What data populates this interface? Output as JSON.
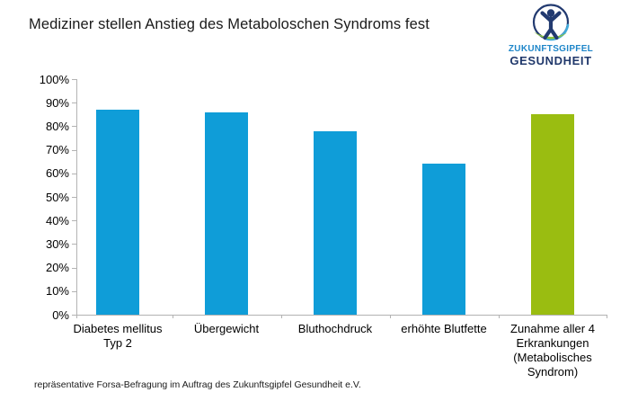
{
  "header": {
    "title": "Mediziner stellen Anstieg des Metaboloschen Syndroms fest"
  },
  "logo": {
    "line1": "ZUKUNFTSGIPFEL",
    "line2": "GESUNDHEIT",
    "emblem": "person-in-circle-icon",
    "colors": {
      "navy": "#223a70",
      "word_blue": "#1e86c9",
      "teal_arc": "#41a9d9",
      "green_swoosh": "#8dc63f"
    }
  },
  "chart_data": {
    "type": "bar",
    "title": "Mediziner stellen Anstieg des Metaboloschen Syndroms fest",
    "categories": [
      "Diabetes mellitus Typ 2",
      "Übergewicht",
      "Bluthochdruck",
      "erhöhte Blutfette",
      "Zunahme aller 4 Erkrankungen (Metabolisches Syndrom)"
    ],
    "values": [
      87,
      86,
      78,
      64,
      85
    ],
    "unit": "%",
    "bar_colors": [
      "#0f9dd8",
      "#0f9dd8",
      "#0f9dd8",
      "#0f9dd8",
      "#9abd11"
    ],
    "ylim": [
      0,
      100
    ],
    "ytick_step": 10,
    "ytick_labels": [
      "0%",
      "10%",
      "20%",
      "30%",
      "40%",
      "50%",
      "60%",
      "70%",
      "80%",
      "90%",
      "100%"
    ],
    "xlabel": "",
    "ylabel": "",
    "grid": false,
    "legend": "none",
    "axis_color": "#b3b3b3"
  },
  "footer": {
    "source": "repräsentative Forsa-Befragung im Auftrag des Zukunftsgipfel Gesundheit e.V."
  }
}
